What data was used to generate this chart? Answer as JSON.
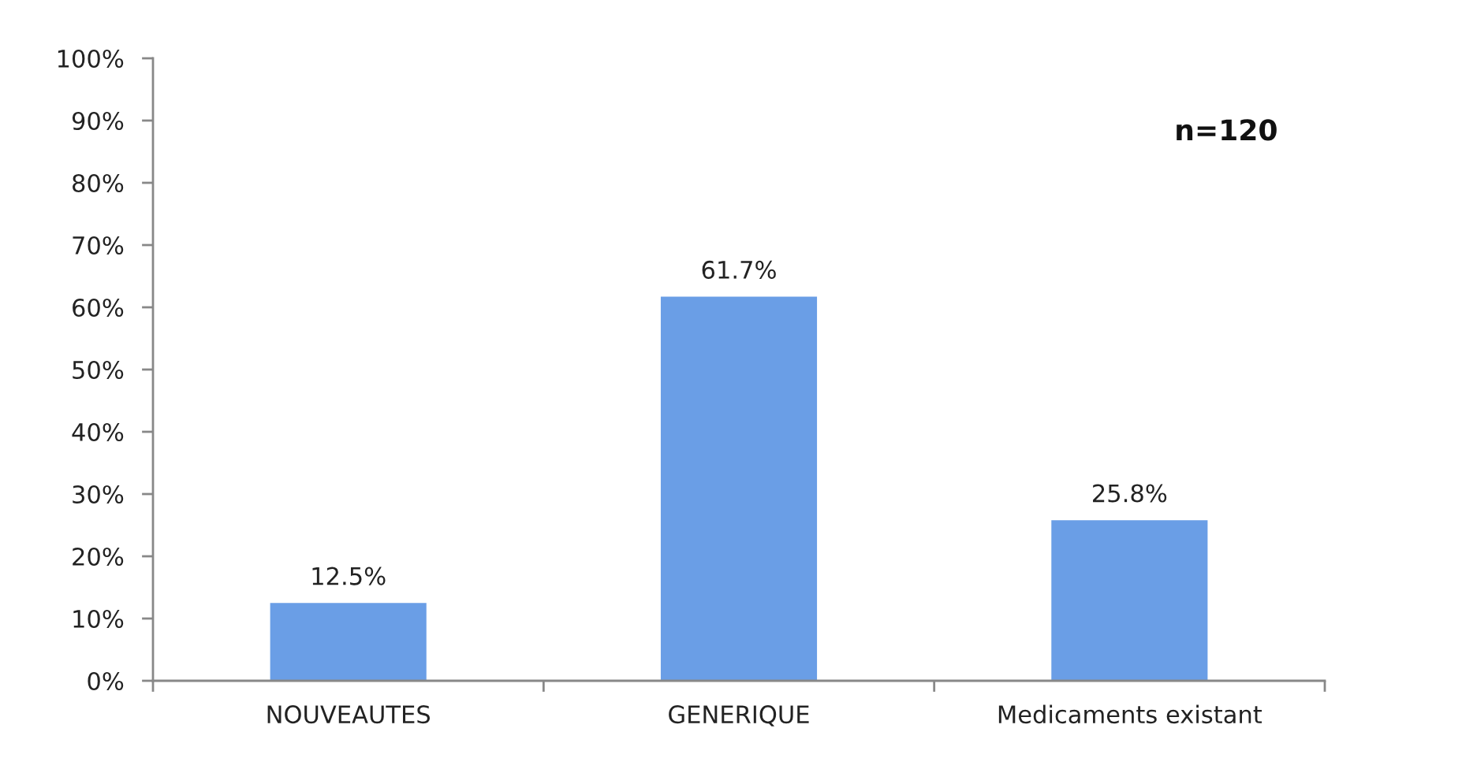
{
  "chart_data": {
    "type": "bar",
    "categories": [
      "NOUVEAUTES",
      "GENERIQUE",
      "Medicaments existant"
    ],
    "values": [
      12.5,
      61.7,
      25.8
    ],
    "color": "#6a9ee6",
    "value_labels": [
      "12.5%",
      "61.7%",
      "25.8%"
    ],
    "ylim": [
      0,
      100
    ],
    "yticks": [
      {
        "value": 0,
        "label": "0%"
      },
      {
        "value": 10,
        "label": "10%"
      },
      {
        "value": 20,
        "label": "20%"
      },
      {
        "value": 30,
        "label": "30%"
      },
      {
        "value": 40,
        "label": "40%"
      },
      {
        "value": 50,
        "label": "50%"
      },
      {
        "value": 60,
        "label": "60%"
      },
      {
        "value": 70,
        "label": "70%"
      },
      {
        "value": 80,
        "label": "80%"
      },
      {
        "value": 90,
        "label": "90%"
      },
      {
        "value": 100,
        "label": "100%"
      }
    ],
    "annotations": [
      "n=120"
    ],
    "grid": false,
    "legend": false
  }
}
